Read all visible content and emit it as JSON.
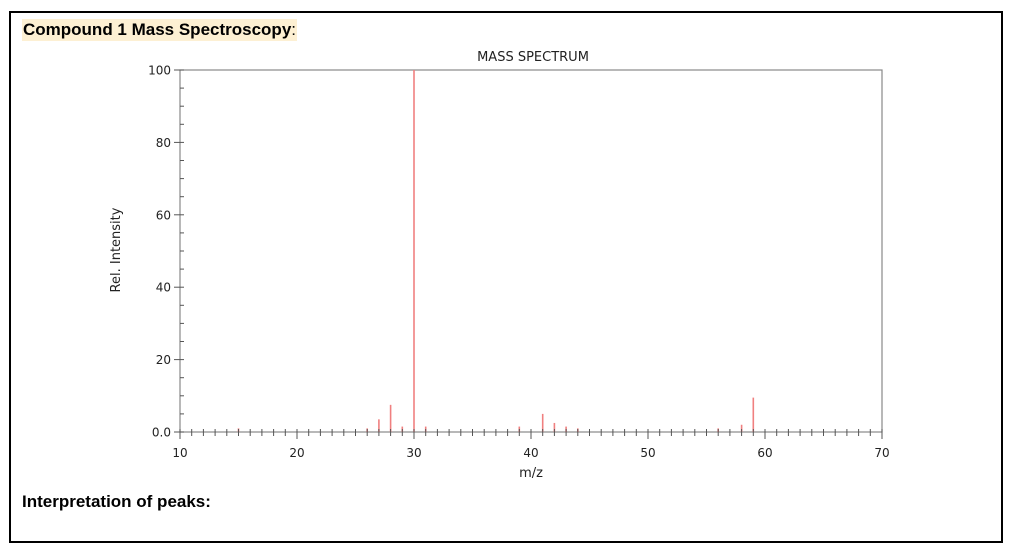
{
  "document": {
    "heading": "Compound 1 Mass Spectroscopy",
    "heading_suffix": ":",
    "footer_heading": "Interpretation of peaks:"
  },
  "colors": {
    "peak": "#f08080",
    "axis": "#555555",
    "heading_highlight": "#fdf0d3"
  },
  "chart_data": {
    "type": "bar",
    "title": "MASS SPECTRUM",
    "xlabel": "m/z",
    "ylabel": "Rel. Intensity",
    "xlim": [
      10,
      70
    ],
    "ylim": [
      0,
      100
    ],
    "x_ticks": [
      10,
      20,
      30,
      40,
      50,
      60,
      70
    ],
    "y_ticks": [
      "0.0",
      "20",
      "40",
      "60",
      "80",
      "100"
    ],
    "grid": false,
    "legend": null,
    "x": [
      15,
      26,
      27,
      28,
      29,
      30,
      31,
      39,
      41,
      42,
      43,
      44,
      56,
      58,
      59
    ],
    "values": [
      1,
      1,
      3.5,
      7.5,
      1.5,
      100,
      1.5,
      1.5,
      5,
      2.5,
      1.5,
      1,
      1,
      2,
      9.5
    ]
  }
}
